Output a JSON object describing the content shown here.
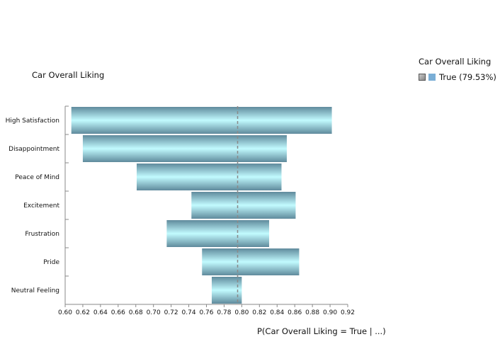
{
  "chart_data": {
    "type": "bar",
    "orientation": "horizontal",
    "title": "Car Overall Liking",
    "xlabel": "P(Car Overall Liking = True | ...)",
    "ylabel": "",
    "xlim": [
      0.6,
      0.92
    ],
    "x_ticks": [
      "0.60",
      "0.62",
      "0.64",
      "0.66",
      "0.68",
      "0.70",
      "0.72",
      "0.74",
      "0.76",
      "0.78",
      "0.80",
      "0.82",
      "0.84",
      "0.86",
      "0.88",
      "0.90",
      "0.92"
    ],
    "baseline": 0.7953,
    "categories": [
      "High Satisfaction",
      "Disappointment",
      "Peace of Mind",
      "Excitement",
      "Frustration",
      "Pride",
      "Neutral Feeling"
    ],
    "series": [
      {
        "name": "True (79.53%)",
        "ranges": [
          [
            0.607,
            0.902
          ],
          [
            0.62,
            0.851
          ],
          [
            0.681,
            0.845
          ],
          [
            0.743,
            0.861
          ],
          [
            0.715,
            0.831
          ],
          [
            0.755,
            0.865
          ],
          [
            0.766,
            0.8
          ]
        ]
      }
    ],
    "legend": {
      "title": "Car Overall Liking",
      "position": "top-right",
      "entries": [
        "True (79.53%)"
      ]
    },
    "colors": {
      "bar_light": "#c2fbff",
      "bar_dark": "#5f8a9c",
      "legend_swatch": "#7aaed6"
    },
    "grid": false
  }
}
